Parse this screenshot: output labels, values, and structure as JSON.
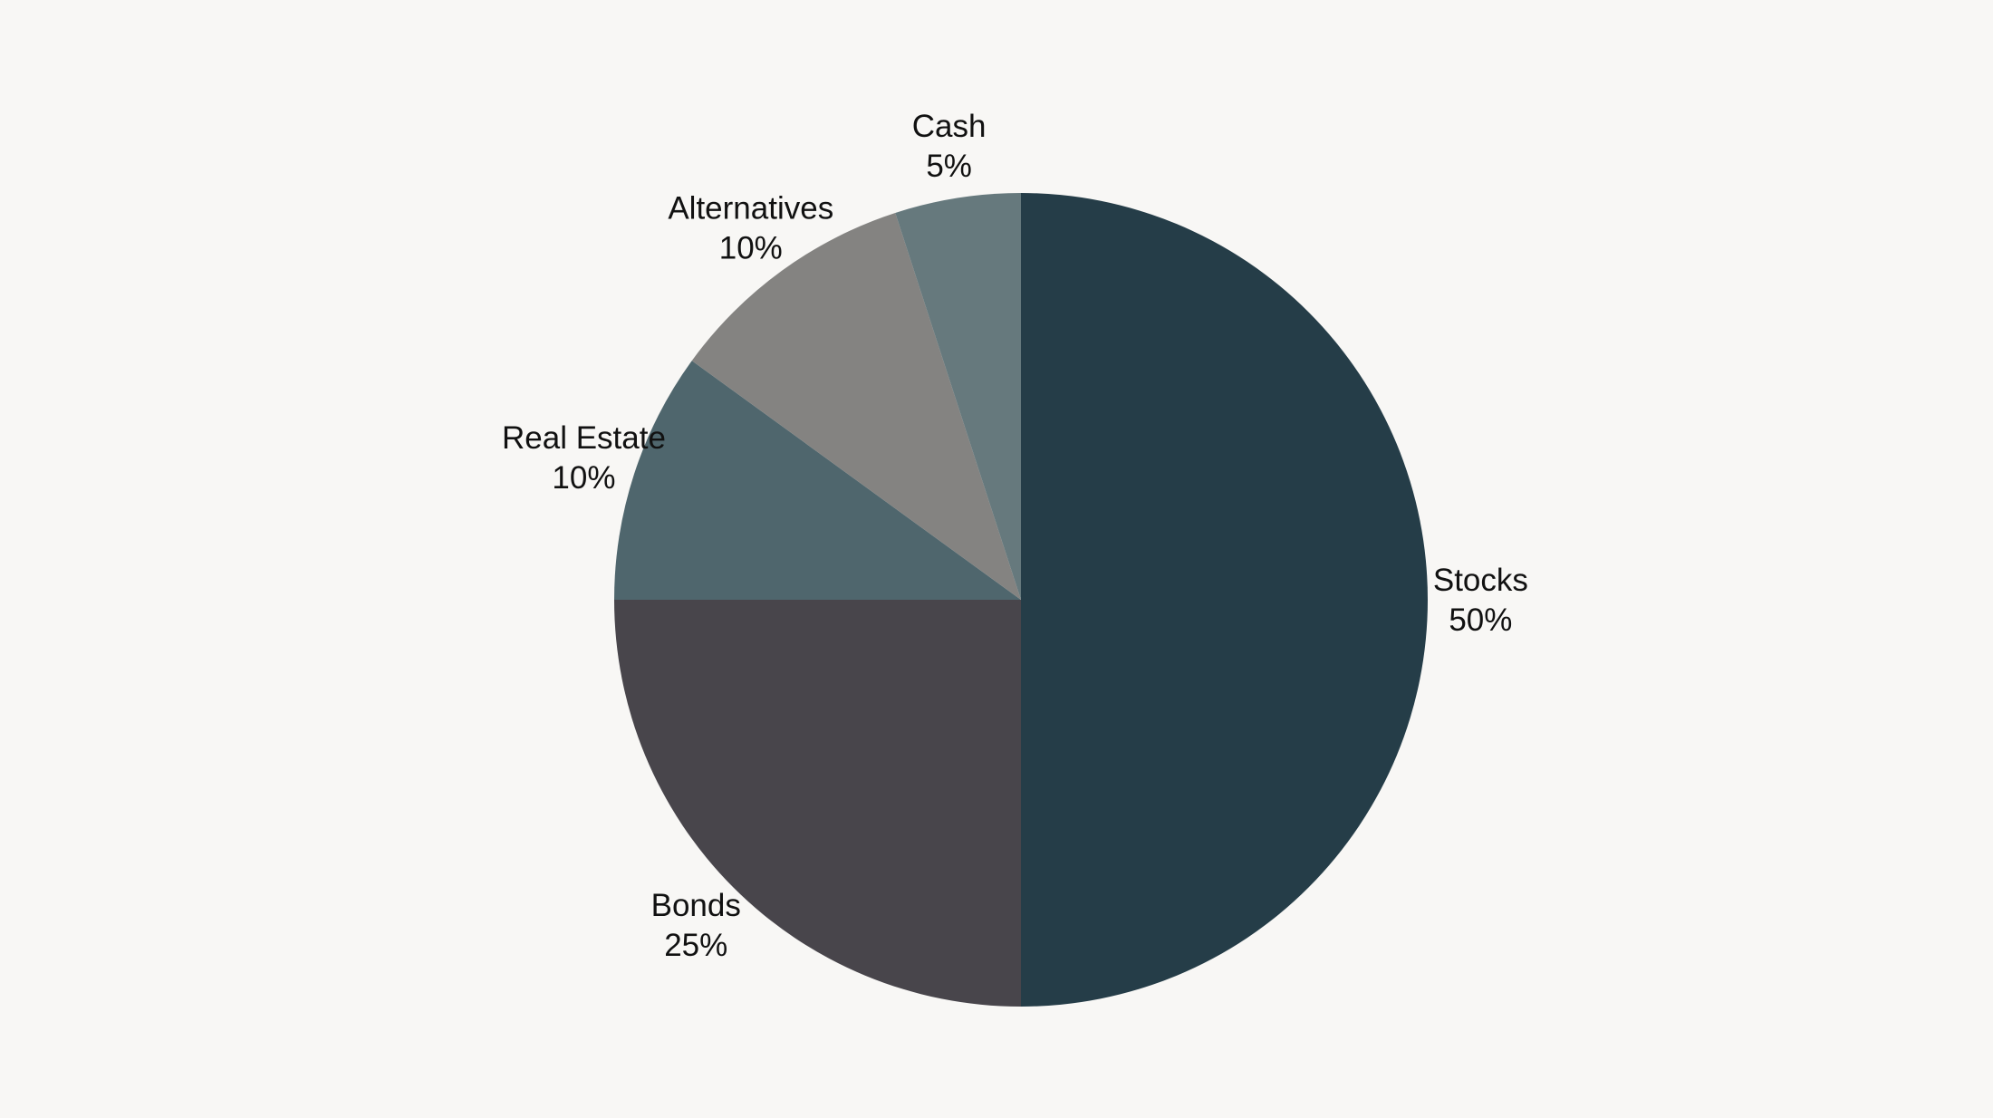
{
  "chart_data": {
    "type": "pie",
    "title": "",
    "start_angle_deg": 0,
    "direction": "clockwise",
    "slices": [
      {
        "label": "Stocks",
        "value": 50,
        "display": "50%",
        "color": "#253d48"
      },
      {
        "label": "Bonds",
        "value": 25,
        "display": "25%",
        "color": "#48454b"
      },
      {
        "label": "Real Estate",
        "value": 10,
        "display": "10%",
        "color": "#4f666d"
      },
      {
        "label": "Alternatives",
        "value": 10,
        "display": "10%",
        "color": "#848381"
      },
      {
        "label": "Cash",
        "value": 5,
        "display": "5%",
        "color": "#66797d"
      }
    ]
  }
}
